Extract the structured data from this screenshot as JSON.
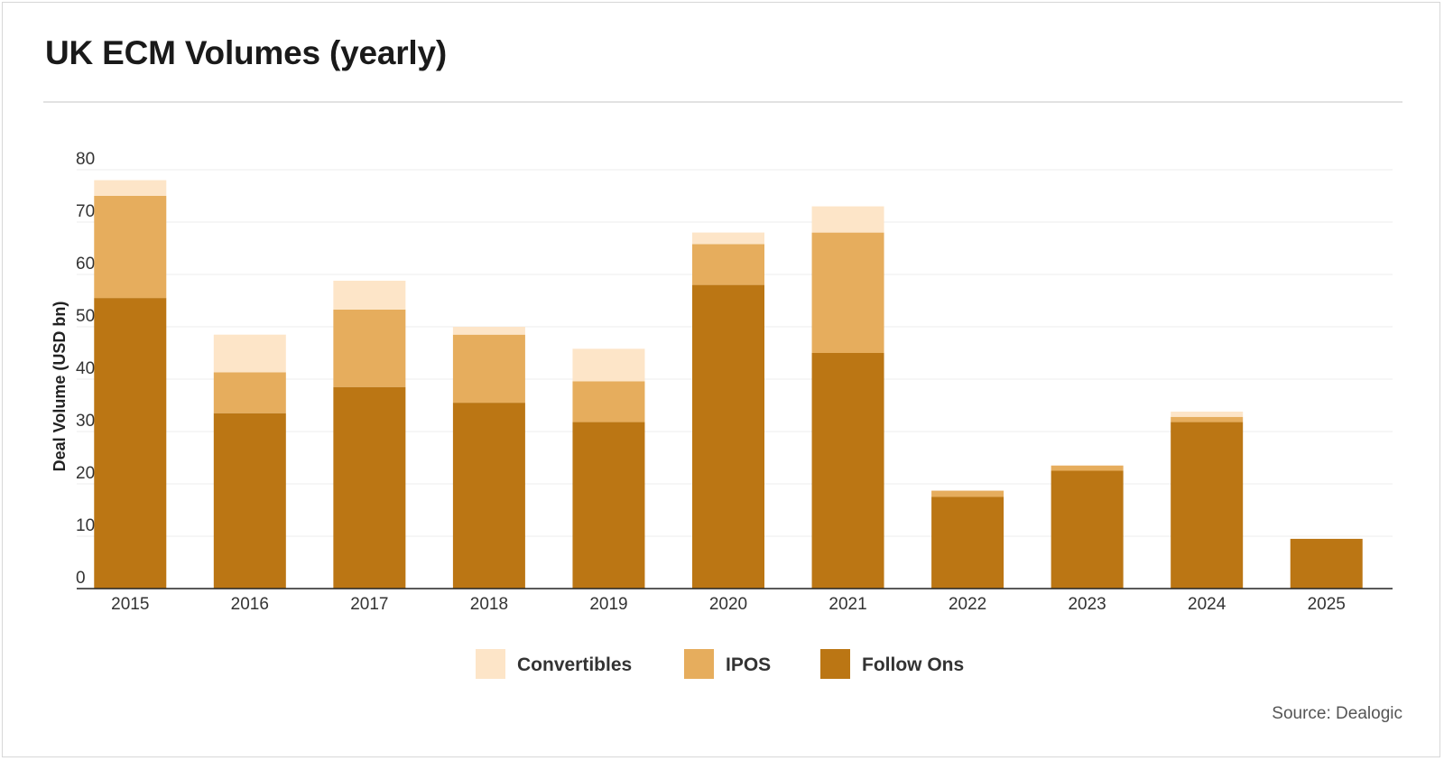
{
  "title": "UK ECM Volumes (yearly)",
  "source": "Source: Dealogic",
  "chart_data": {
    "type": "bar",
    "stacked": true,
    "title": "UK ECM Volumes (yearly)",
    "xlabel": "",
    "ylabel": "Deal Volume (USD bn)",
    "ylim": [
      0,
      80
    ],
    "yticks": [
      0,
      10,
      20,
      30,
      40,
      50,
      60,
      70,
      80
    ],
    "grid": true,
    "legend": "bottom-center",
    "categories": [
      "2015",
      "2016",
      "2017",
      "2018",
      "2019",
      "2020",
      "2021",
      "2022",
      "2023",
      "2024",
      "2025"
    ],
    "series": [
      {
        "name": "Follow Ons",
        "color": "#bb7614",
        "values": [
          55.5,
          33.5,
          38.5,
          35.5,
          31.8,
          58,
          45,
          17.5,
          22.5,
          31.8,
          9.5
        ]
      },
      {
        "name": "IPOS",
        "color": "#e6ad5d",
        "values": [
          19.5,
          7.8,
          14.8,
          13,
          7.8,
          7.8,
          23,
          1.2,
          1,
          1,
          0
        ]
      },
      {
        "name": "Convertibles",
        "color": "#fde5c8",
        "values": [
          3,
          7.2,
          5.5,
          1.5,
          6.2,
          2.2,
          5,
          0,
          0,
          1,
          0
        ]
      }
    ],
    "legend_order": [
      "Convertibles",
      "IPOS",
      "Follow Ons"
    ]
  }
}
